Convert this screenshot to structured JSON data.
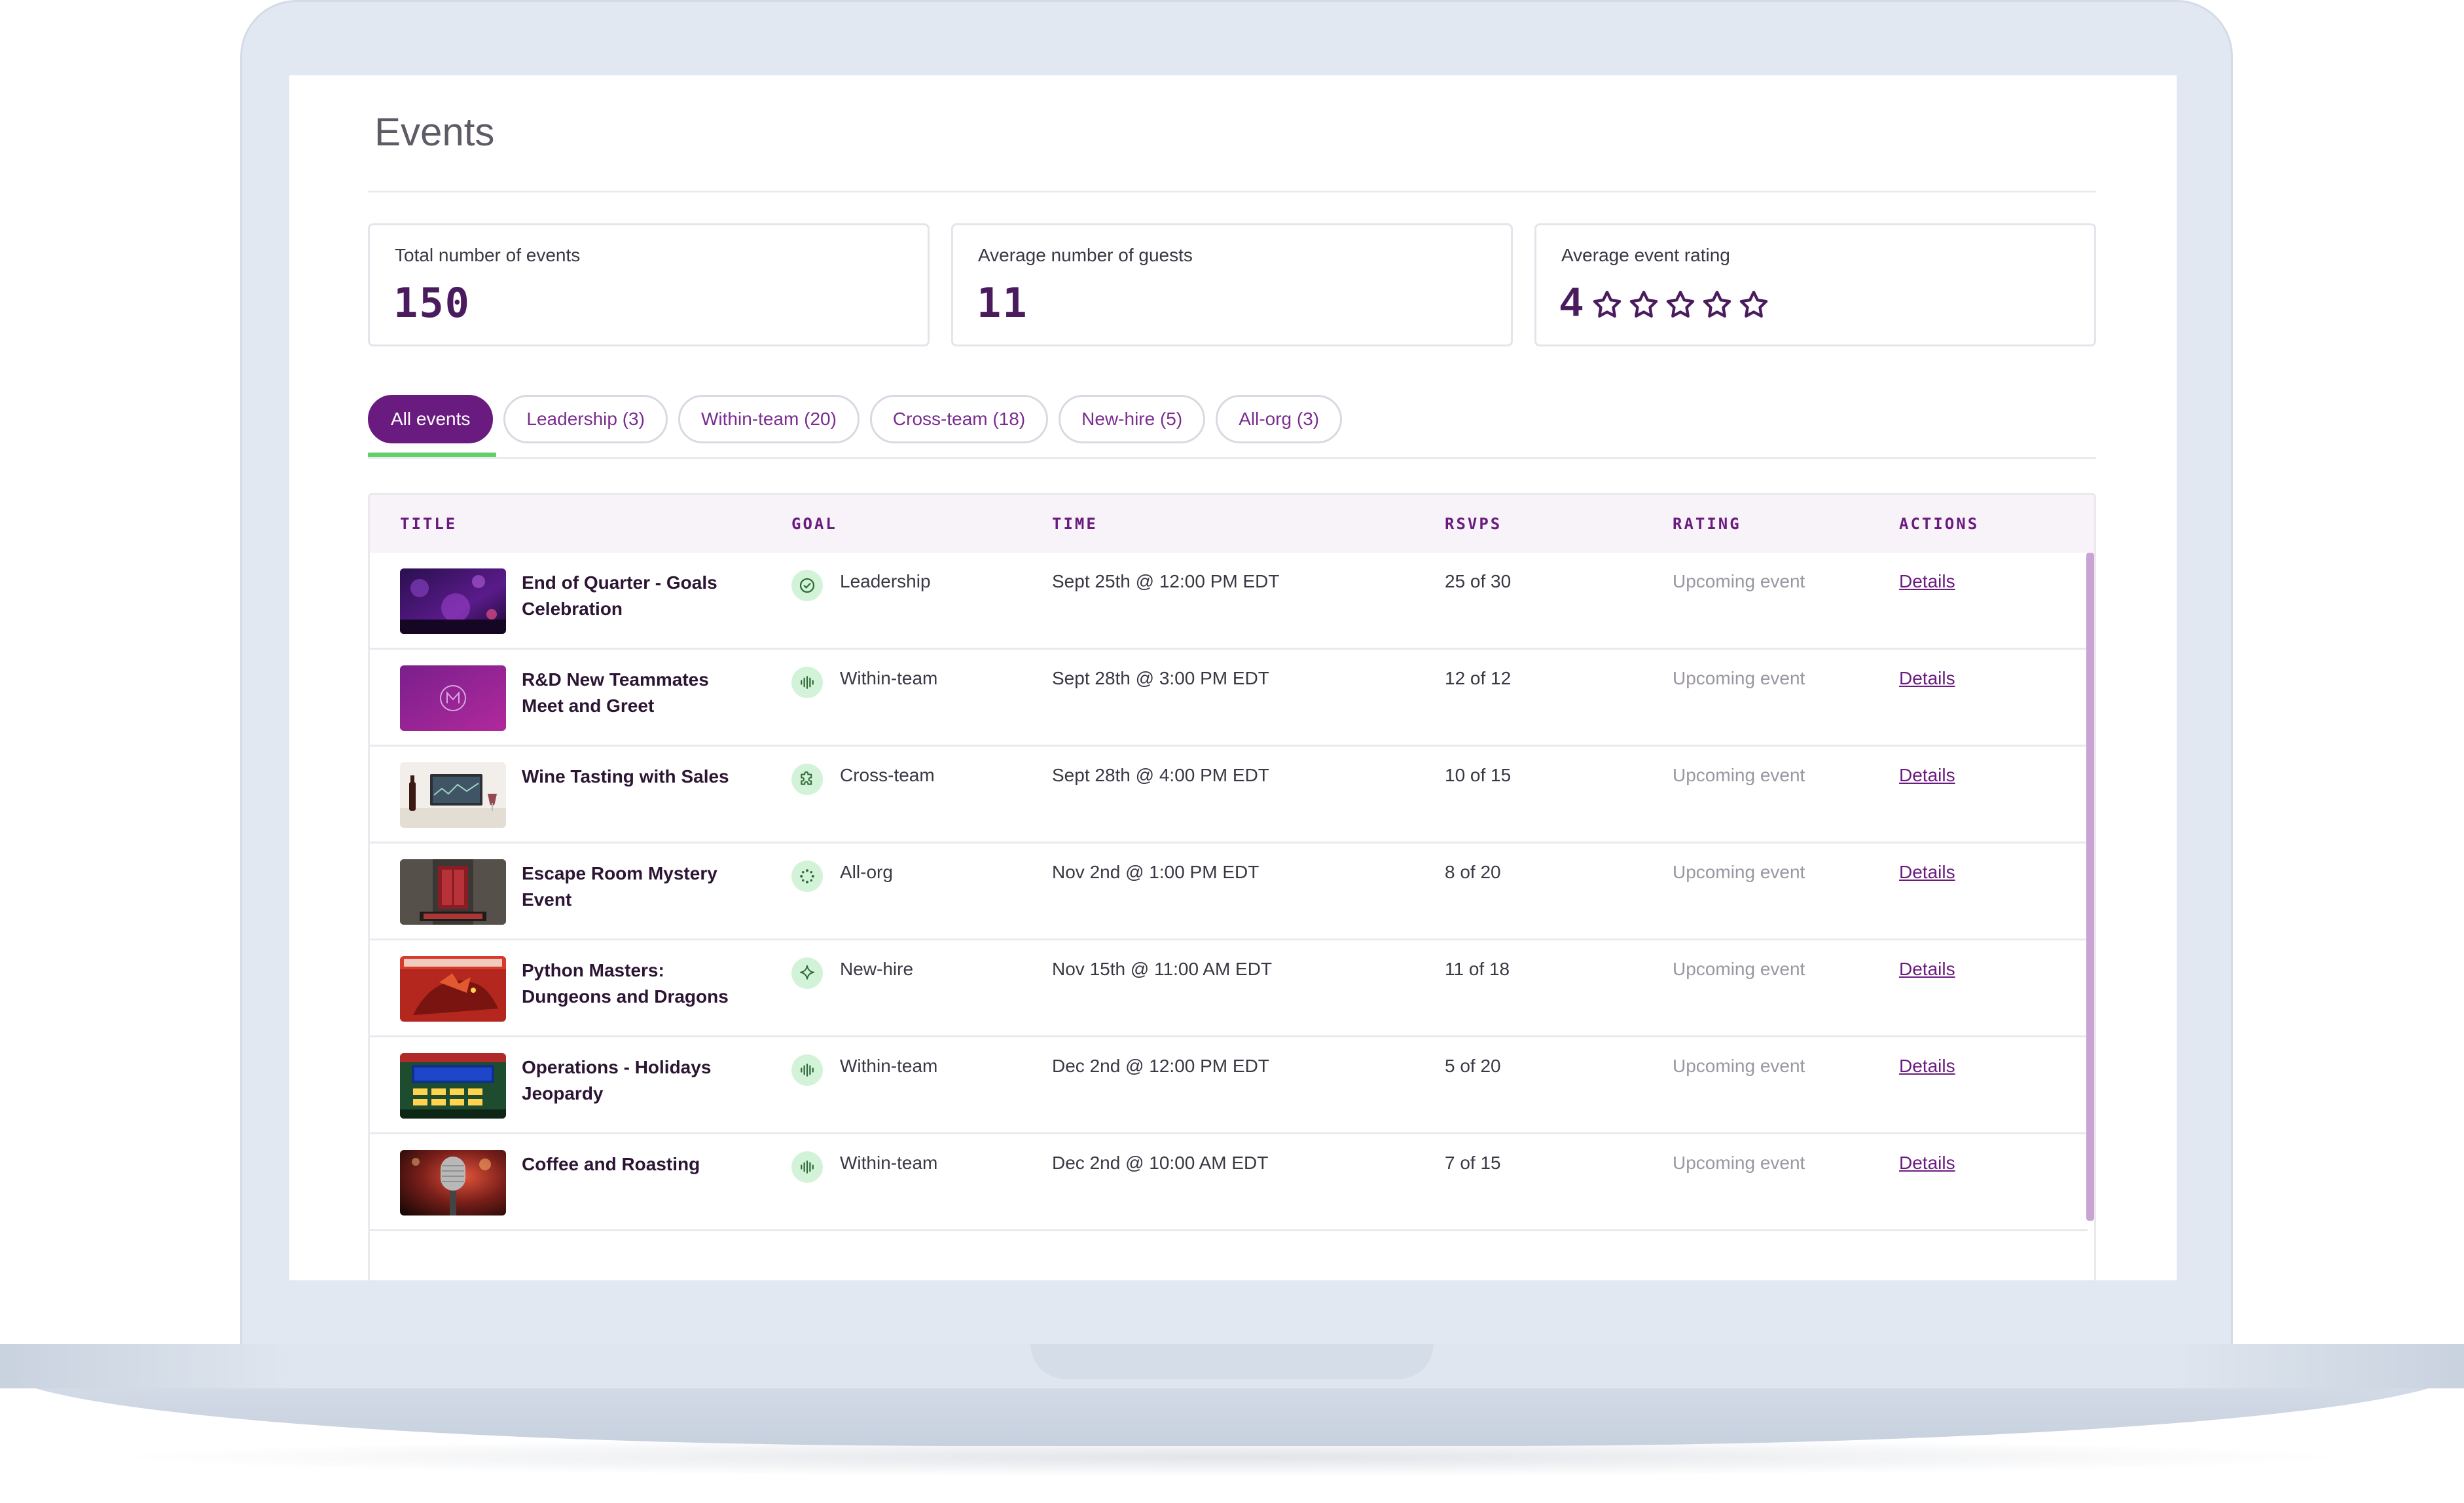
{
  "page": {
    "title": "Events"
  },
  "stats": {
    "total_events": {
      "label": "Total number of events",
      "value": "150"
    },
    "avg_guests": {
      "label": "Average number of guests",
      "value": "11"
    },
    "avg_rating": {
      "label": "Average event rating",
      "value": "4",
      "stars_total": 5,
      "stars_filled": 0
    }
  },
  "tabs": [
    {
      "label": "All events",
      "active": true
    },
    {
      "label": "Leadership (3)",
      "active": false
    },
    {
      "label": "Within-team (20)",
      "active": false
    },
    {
      "label": "Cross-team (18)",
      "active": false
    },
    {
      "label": "New-hire (5)",
      "active": false
    },
    {
      "label": "All-org (3)",
      "active": false
    }
  ],
  "table": {
    "headers": {
      "title": "TITLE",
      "goal": "GOAL",
      "time": "TIME",
      "rsvps": "RSVPS",
      "rating": "RATING",
      "actions": "ACTIONS"
    },
    "rows": [
      {
        "title": "End of Quarter - Goals Celebration",
        "goal": "Leadership",
        "goal_icon": "check-circle-icon",
        "time": "Sept 25th @ 12:00 PM EDT",
        "rsvps": "25 of 30",
        "rating": "Upcoming event",
        "action": "Details",
        "thumb": "party-image"
      },
      {
        "title": "R&D New Teammates Meet and Greet",
        "goal": "Within-team",
        "goal_icon": "soundwave-icon",
        "time": "Sept 28th @ 3:00 PM EDT",
        "rsvps": "12 of 12",
        "rating": "Upcoming event",
        "action": "Details",
        "thumb": "logo-image"
      },
      {
        "title": "Wine Tasting with Sales",
        "goal": "Cross-team",
        "goal_icon": "puzzle-icon",
        "time": "Sept 28th @ 4:00 PM EDT",
        "rsvps": "10 of 15",
        "rating": "Upcoming event",
        "action": "Details",
        "thumb": "wine-image"
      },
      {
        "title": "Escape Room Mystery Event",
        "goal": "All-org",
        "goal_icon": "dots-circle-icon",
        "time": "Nov 2nd @ 1:00 PM EDT",
        "rsvps": "8 of 20",
        "rating": "Upcoming event",
        "action": "Details",
        "thumb": "escape-room-image"
      },
      {
        "title": "Python Masters: Dungeons and Dragons",
        "goal": "New-hire",
        "goal_icon": "sparkle-icon",
        "time": "Nov 15th @ 11:00 AM EDT",
        "rsvps": "11 of 18",
        "rating": "Upcoming event",
        "action": "Details",
        "thumb": "dragons-image"
      },
      {
        "title": "Operations - Holidays Jeopardy",
        "goal": "Within-team",
        "goal_icon": "soundwave-icon",
        "time": "Dec 2nd @ 12:00 PM EDT",
        "rsvps": "5 of 20",
        "rating": "Upcoming event",
        "action": "Details",
        "thumb": "jeopardy-image"
      },
      {
        "title": "Coffee and Roasting",
        "goal": "Within-team",
        "goal_icon": "soundwave-icon",
        "time": "Dec 2nd @ 10:00 AM EDT",
        "rsvps": "7 of 15",
        "rating": "Upcoming event",
        "action": "Details",
        "thumb": "microphone-image"
      }
    ]
  },
  "colors": {
    "brand_purple": "#6a1b7f",
    "value_purple": "#4a1c5e",
    "tab_underline_green": "#5fd16b",
    "goal_icon_bg": "#d3f3d8"
  }
}
